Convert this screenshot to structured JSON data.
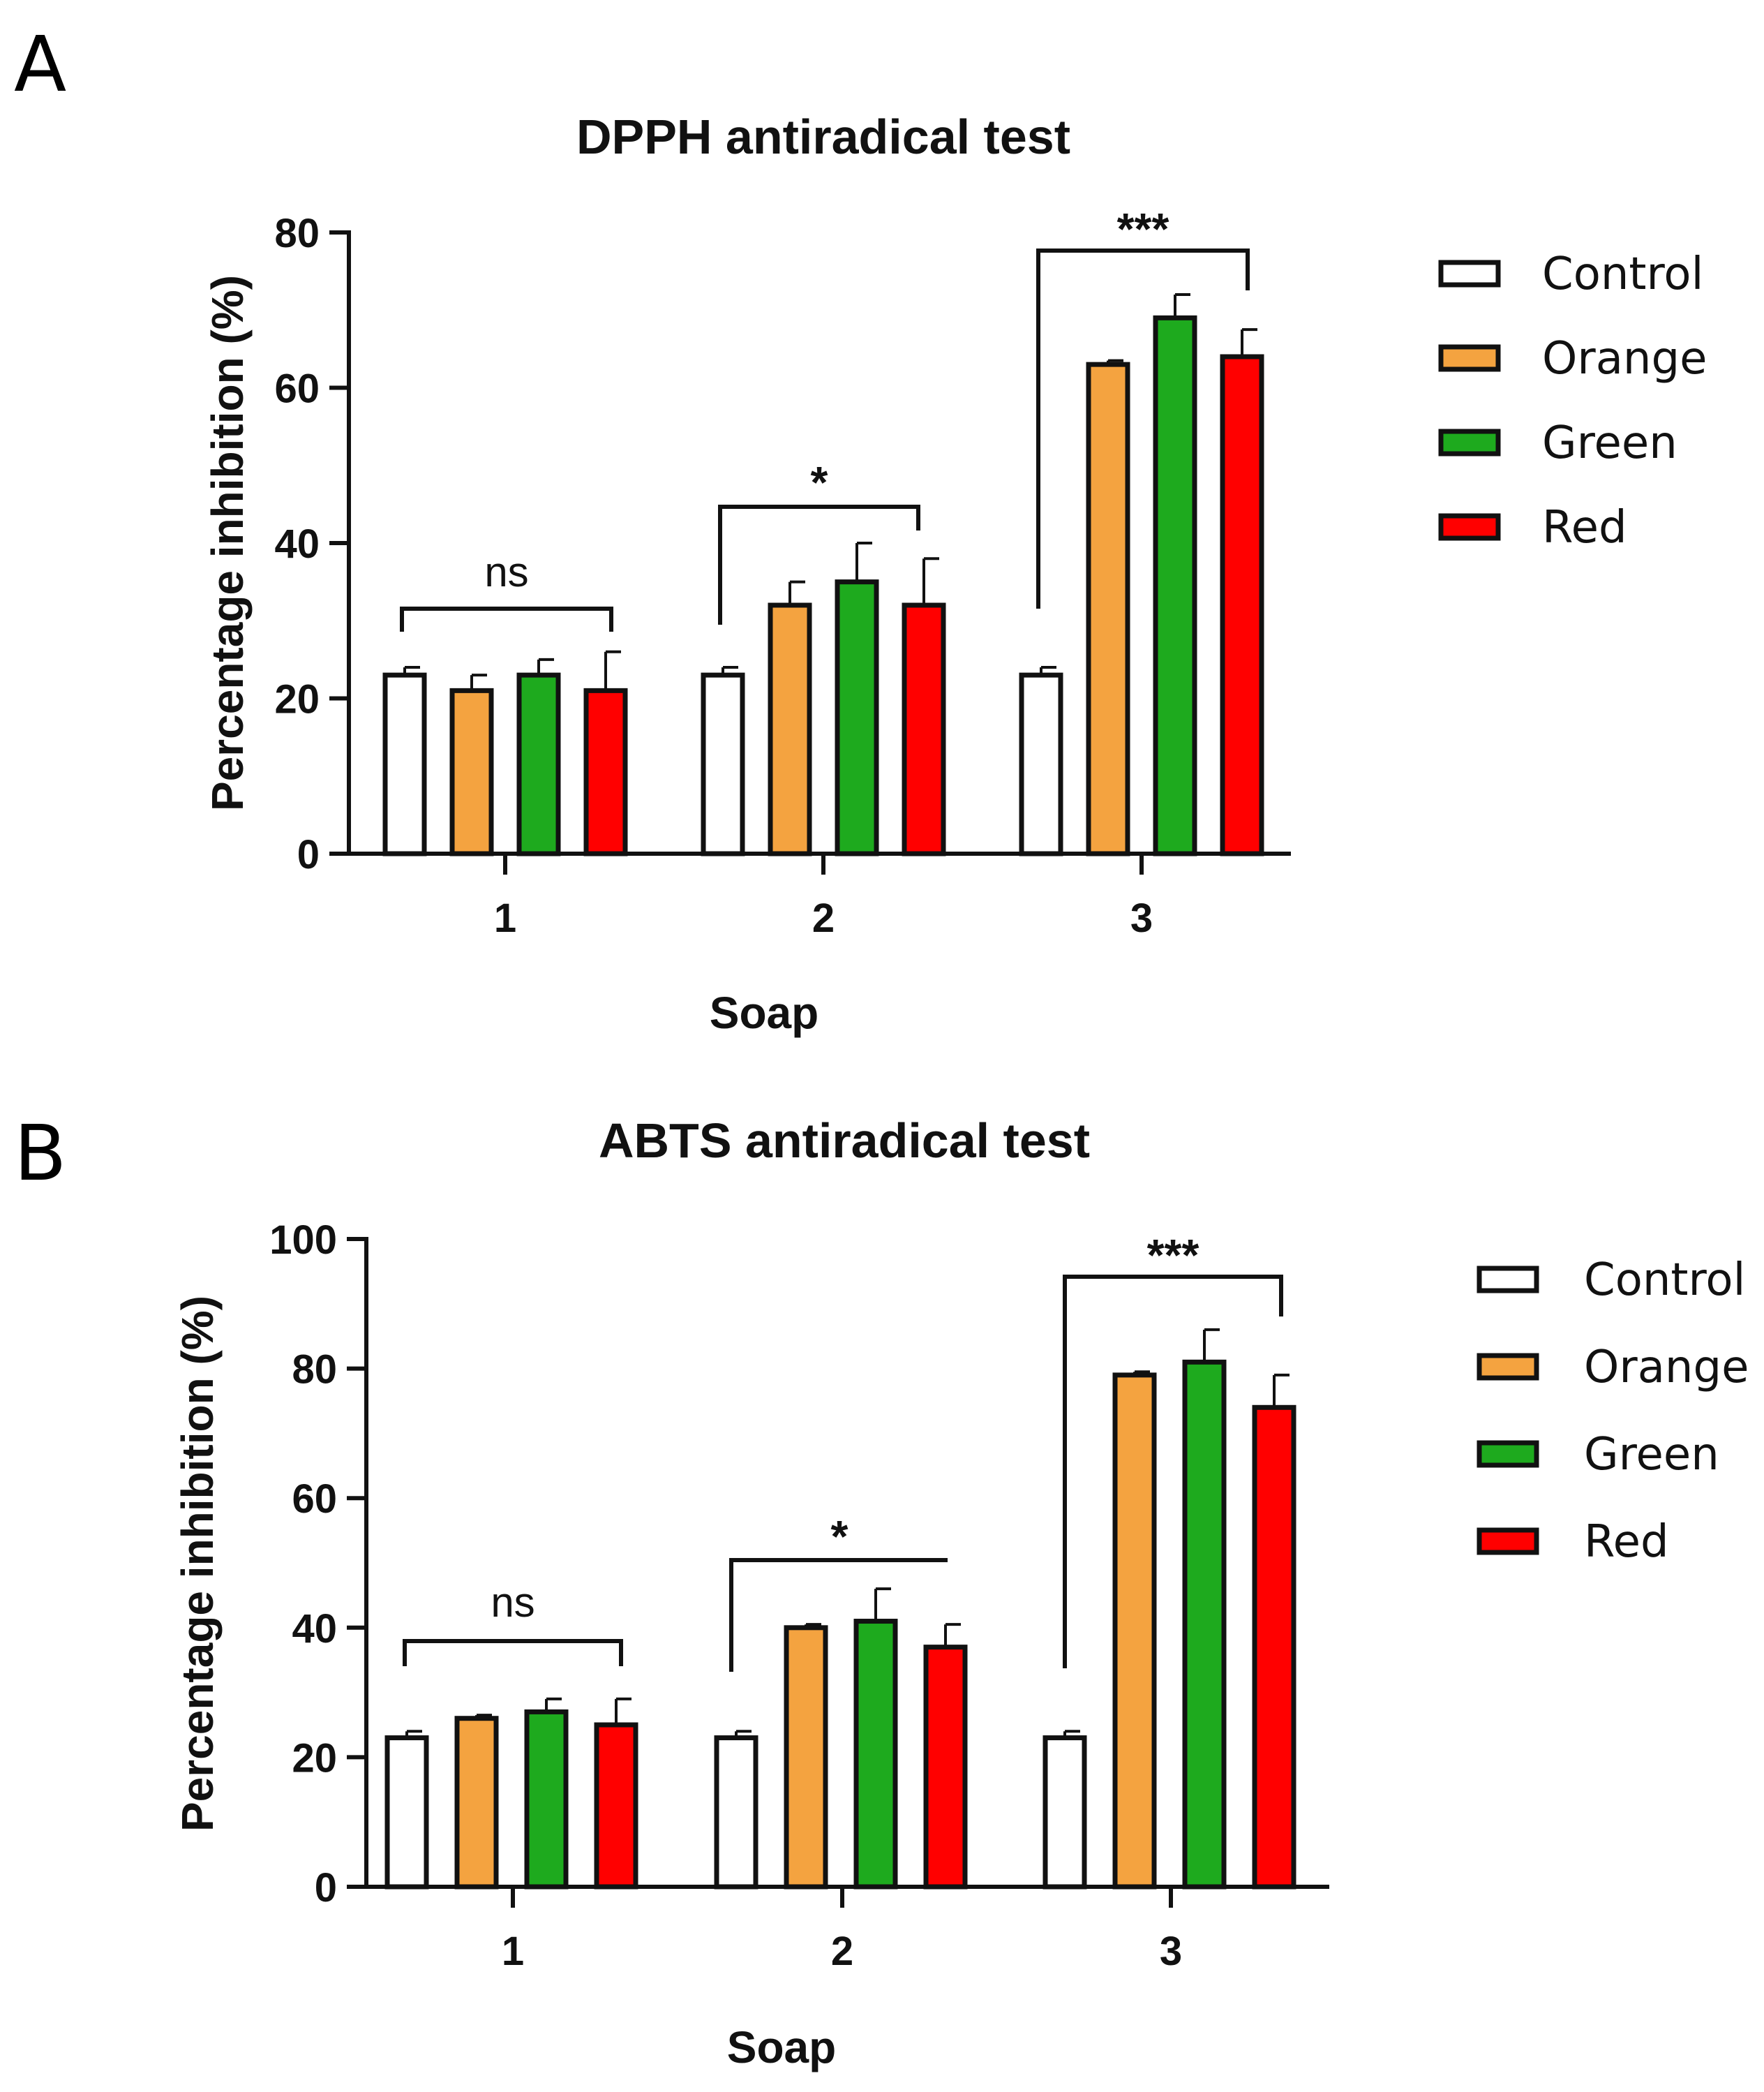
{
  "chart_data": [
    {
      "panel": "A",
      "type": "bar",
      "title": "DPPH antiradical test",
      "xlabel": "Soap",
      "ylabel": "Percentage inhibition (%)",
      "ylim": [
        0,
        80
      ],
      "yticks": [
        0,
        20,
        40,
        60,
        80
      ],
      "categories": [
        "1",
        "2",
        "3"
      ],
      "series": [
        {
          "name": "Control",
          "color": "#ffffff",
          "values": [
            23,
            23,
            23
          ],
          "errors": [
            1,
            1,
            1
          ]
        },
        {
          "name": "Orange",
          "color": "#f4a340",
          "values": [
            21,
            32,
            63
          ],
          "errors": [
            2,
            3,
            0.5
          ]
        },
        {
          "name": "Green",
          "color": "#1eaa1e",
          "values": [
            23,
            35,
            69
          ],
          "errors": [
            2,
            5,
            3
          ]
        },
        {
          "name": "Red",
          "color": "#ff0000",
          "values": [
            21,
            32,
            64
          ],
          "errors": [
            5,
            6,
            3.5
          ]
        }
      ],
      "annotations": [
        "ns",
        "*",
        "***"
      ],
      "legend_position": "right"
    },
    {
      "panel": "B",
      "type": "bar",
      "title": "ABTS antiradical test",
      "xlabel": "Soap",
      "ylabel": "Percentage inhibition (%)",
      "ylim": [
        0,
        100
      ],
      "yticks": [
        0,
        20,
        40,
        60,
        80,
        100
      ],
      "categories": [
        "1",
        "2",
        "3"
      ],
      "series": [
        {
          "name": "Control",
          "color": "#ffffff",
          "values": [
            23,
            23,
            23
          ],
          "errors": [
            1,
            1,
            1
          ]
        },
        {
          "name": "Orange",
          "color": "#f4a340",
          "values": [
            26,
            40,
            79
          ],
          "errors": [
            0.5,
            0.5,
            0.5
          ]
        },
        {
          "name": "Green",
          "color": "#1eaa1e",
          "values": [
            27,
            41,
            81
          ],
          "errors": [
            2,
            5,
            5
          ]
        },
        {
          "name": "Red",
          "color": "#ff0000",
          "values": [
            25,
            37,
            74
          ],
          "errors": [
            4,
            3.5,
            5
          ]
        }
      ],
      "annotations": [
        "ns",
        "*",
        "***"
      ],
      "legend_position": "right"
    }
  ]
}
